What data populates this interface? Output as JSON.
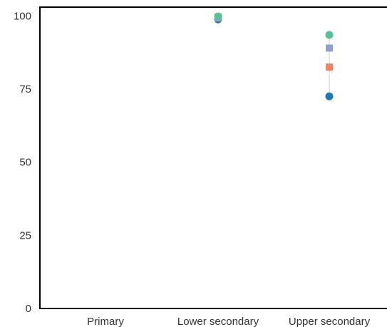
{
  "chart_data": {
    "type": "scatter",
    "categories": [
      "Primary",
      "Lower secondary",
      "Upper secondary"
    ],
    "ylim": [
      0,
      103
    ],
    "yticks": [
      0,
      25,
      50,
      75,
      100
    ],
    "grid": false,
    "series": [
      {
        "color": "#1f77b4",
        "marker": "circle",
        "values": [
          null,
          98.8,
          72.5
        ]
      },
      {
        "color": "#f4845f",
        "marker": "square",
        "values": [
          null,
          99.3,
          82.5
        ]
      },
      {
        "color": "#8f9fd3",
        "marker": "square",
        "values": [
          null,
          99.6,
          89.0
        ]
      },
      {
        "color": "#5bbf97",
        "marker": "circle",
        "values": [
          null,
          99.8,
          93.5
        ]
      }
    ],
    "range_line_color": "#cccccc"
  }
}
